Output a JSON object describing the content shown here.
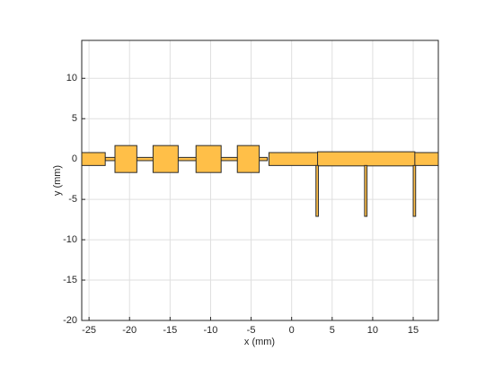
{
  "chart_data": {
    "type": "layout",
    "xlabel": "x (mm)",
    "ylabel": "y (mm)",
    "xlim": [
      -25.9,
      18.1
    ],
    "ylim": [
      -20,
      14.7
    ],
    "xticks": [
      -25,
      -20,
      -15,
      -10,
      -5,
      0,
      5,
      10,
      15
    ],
    "yticks": [
      -20,
      -15,
      -10,
      -5,
      0,
      5,
      10
    ],
    "grid": true,
    "color": "#ffbf48",
    "edgecolor": "#2b2b2b",
    "shapes": [
      {
        "x": [
          -23,
          -3
        ],
        "y": [
          -0.2,
          0.2
        ]
      },
      {
        "x": [
          -25.9,
          -23
        ],
        "y": [
          -0.8,
          0.8
        ]
      },
      {
        "x": [
          -21.8,
          -19.1
        ],
        "y": [
          -1.67,
          1.67
        ]
      },
      {
        "x": [
          -17.1,
          -14
        ],
        "y": [
          -1.67,
          1.67
        ]
      },
      {
        "x": [
          -11.8,
          -8.7
        ],
        "y": [
          -1.67,
          1.67
        ]
      },
      {
        "x": [
          -6.7,
          -4
        ],
        "y": [
          -1.67,
          1.67
        ]
      },
      {
        "x": [
          -2.8,
          18.1
        ],
        "y": [
          -0.8,
          0.8
        ]
      },
      {
        "x": [
          3.2,
          15.2
        ],
        "y": [
          -0.85,
          0.9
        ]
      },
      {
        "x": [
          3,
          3.3
        ],
        "y": [
          -7.1,
          -0.8
        ]
      },
      {
        "x": [
          9,
          9.3
        ],
        "y": [
          -7.1,
          -0.8
        ]
      },
      {
        "x": [
          15,
          15.3
        ],
        "y": [
          -7.1,
          -0.8
        ]
      }
    ]
  }
}
